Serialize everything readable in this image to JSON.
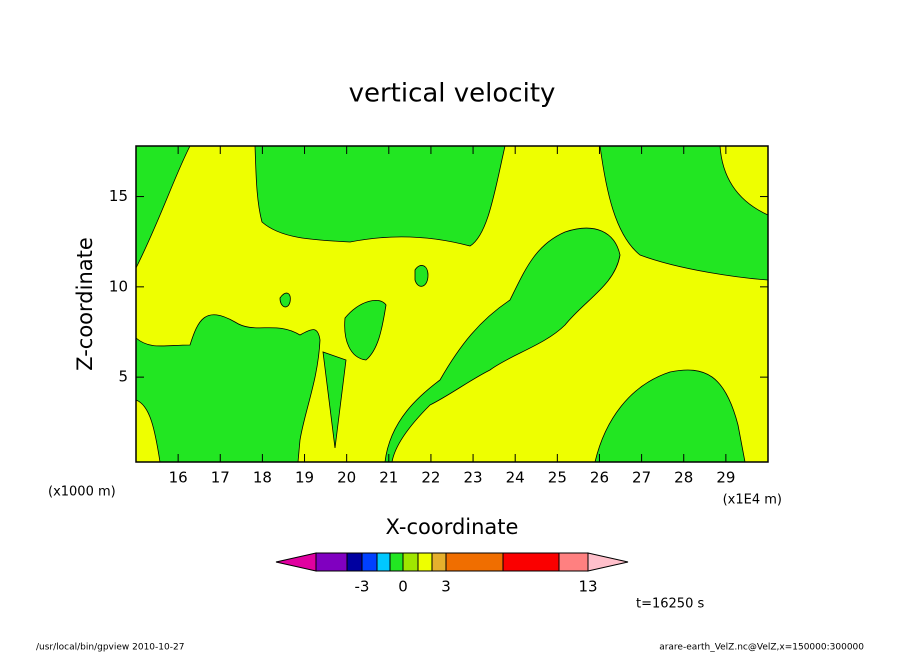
{
  "chart_data": {
    "type": "contour",
    "title": "vertical velocity",
    "x_label": "X-coordinate",
    "y_label": "Z-coordinate",
    "x_unit_left": "(x1000 m)",
    "x_unit_right": "(x1E4 m)",
    "time_label": "t=16250 s",
    "footer_left": "/usr/local/bin/gpview  2010-10-27",
    "footer_right": "arare-earth_VelZ.nc@VelZ,x=150000:300000",
    "xlim": [
      15,
      30
    ],
    "xticks": [
      16,
      17,
      18,
      19,
      20,
      21,
      22,
      23,
      24,
      25,
      26,
      27,
      28,
      29
    ],
    "ylim": [
      0.3,
      17.8
    ],
    "yticks": [
      5,
      10,
      15
    ],
    "field_colors": [
      "#eeff00",
      "#22e622"
    ],
    "colorbar": {
      "colors": [
        "#e000a0",
        "#8000c0",
        "#0000a0",
        "#0040ff",
        "#00c8ff",
        "#22e622",
        "#a0e600",
        "#eeff00",
        "#e6b02d",
        "#f06e00",
        "#fa0000",
        "#ff8080",
        "#ffc0cb"
      ],
      "ticks": [
        -3,
        0,
        3,
        13
      ]
    }
  }
}
